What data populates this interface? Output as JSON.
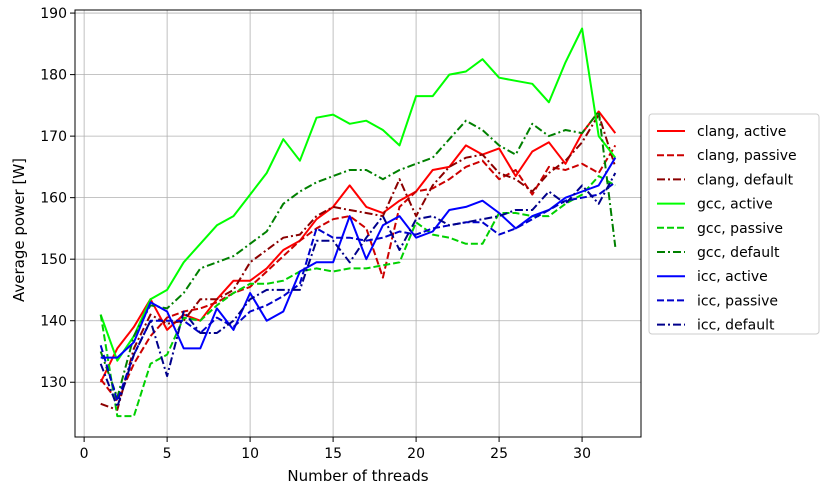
{
  "chart_data": {
    "type": "line",
    "title": "",
    "xlabel": "Number of threads",
    "ylabel": "Average power [W]",
    "xlim": [
      -0.55,
      33.55
    ],
    "ylim": [
      121.1,
      190.5
    ],
    "xticks": [
      0,
      5,
      10,
      15,
      20,
      25,
      30
    ],
    "yticks": [
      130,
      140,
      150,
      160,
      170,
      180,
      190
    ],
    "grid": true,
    "legend_position": "outside-right",
    "x": [
      1,
      2,
      3,
      4,
      5,
      6,
      7,
      8,
      9,
      10,
      11,
      12,
      13,
      14,
      15,
      16,
      17,
      18,
      19,
      20,
      21,
      22,
      23,
      24,
      25,
      26,
      27,
      28,
      29,
      30,
      31,
      32
    ],
    "series": [
      {
        "name": "clang, active",
        "color": "#ff0000",
        "dash": "solid",
        "values": [
          130.0,
          135.5,
          139.0,
          143.5,
          138.5,
          141.0,
          140.0,
          143.5,
          146.5,
          146.5,
          148.5,
          151.5,
          153.0,
          156.5,
          158.5,
          162.0,
          158.5,
          157.5,
          159.5,
          161.0,
          164.5,
          165.0,
          168.5,
          167.0,
          168.0,
          163.5,
          167.5,
          169.0,
          165.5,
          170.5,
          174.0,
          170.5
        ]
      },
      {
        "name": "clang, passive",
        "color": "#cc0000",
        "dash": "dashed",
        "values": [
          130.5,
          127.0,
          133.0,
          137.5,
          140.5,
          141.5,
          142.0,
          143.0,
          144.5,
          145.5,
          148.0,
          150.5,
          153.0,
          155.0,
          156.5,
          157.0,
          155.0,
          147.0,
          158.5,
          161.0,
          161.5,
          163.0,
          165.0,
          166.0,
          163.0,
          164.5,
          160.5,
          165.0,
          164.5,
          165.5,
          164.0,
          168.5
        ]
      },
      {
        "name": "clang, default",
        "color": "#8b0000",
        "dash": "dashdot",
        "values": [
          126.5,
          125.5,
          135.5,
          141.0,
          139.5,
          140.0,
          143.5,
          143.5,
          145.0,
          149.5,
          151.5,
          153.5,
          154.0,
          157.0,
          158.5,
          158.0,
          157.5,
          157.0,
          163.0,
          157.0,
          162.0,
          165.0,
          166.5,
          167.0,
          164.0,
          163.0,
          161.0,
          164.0,
          166.0,
          169.0,
          173.5,
          165.0
        ]
      },
      {
        "name": "gcc, active",
        "color": "#00ff00",
        "dash": "solid",
        "values": [
          141.0,
          133.5,
          137.5,
          143.5,
          145.0,
          149.5,
          152.5,
          155.5,
          157.0,
          160.5,
          164.0,
          169.5,
          166.0,
          173.0,
          173.5,
          172.0,
          172.5,
          171.0,
          168.5,
          176.5,
          176.5,
          180.0,
          180.5,
          182.5,
          179.5,
          179.0,
          178.5,
          175.5,
          182.0,
          187.5,
          170.0,
          166.5
        ]
      },
      {
        "name": "gcc, passive",
        "color": "#00d000",
        "dash": "dashed",
        "values": [
          141.0,
          124.5,
          124.5,
          133.0,
          134.5,
          140.5,
          140.0,
          142.5,
          144.5,
          146.0,
          146.0,
          146.5,
          148.0,
          148.5,
          148.0,
          148.5,
          148.5,
          149.0,
          149.5,
          156.0,
          154.0,
          153.5,
          152.5,
          152.5,
          157.5,
          157.5,
          157.0,
          157.0,
          159.0,
          160.5,
          163.5,
          162.0
        ]
      },
      {
        "name": "gcc, default",
        "color": "#008000",
        "dash": "dashdot",
        "values": [
          135.0,
          127.5,
          137.5,
          142.5,
          142.0,
          144.5,
          148.5,
          149.5,
          150.5,
          152.5,
          154.5,
          159.0,
          161.0,
          162.5,
          163.5,
          164.5,
          164.5,
          163.0,
          164.5,
          165.5,
          166.5,
          169.5,
          172.5,
          171.0,
          168.5,
          167.0,
          172.0,
          170.0,
          171.0,
          170.5,
          174.0,
          152.0
        ]
      },
      {
        "name": "icc, active",
        "color": "#0000ff",
        "dash": "solid",
        "values": [
          134.0,
          134.0,
          136.5,
          143.0,
          141.5,
          135.5,
          135.5,
          142.0,
          138.5,
          144.5,
          140.0,
          141.5,
          148.0,
          149.5,
          149.5,
          157.0,
          150.0,
          155.5,
          157.0,
          153.5,
          154.5,
          158.0,
          158.5,
          159.5,
          157.5,
          155.0,
          157.0,
          158.0,
          160.0,
          161.0,
          162.0,
          166.5
        ]
      },
      {
        "name": "icc, passive",
        "color": "#0000cc",
        "dash": "dashed",
        "values": [
          136.0,
          127.0,
          134.5,
          140.0,
          140.0,
          140.0,
          138.0,
          140.5,
          139.0,
          141.5,
          142.5,
          144.0,
          146.0,
          155.0,
          153.5,
          153.5,
          153.0,
          153.5,
          154.5,
          154.0,
          155.0,
          155.5,
          156.0,
          156.0,
          154.0,
          155.0,
          156.5,
          158.0,
          159.5,
          160.0,
          160.5,
          162.5
        ]
      },
      {
        "name": "icc, default",
        "color": "#00008b",
        "dash": "dashdot",
        "values": [
          133.0,
          126.0,
          134.5,
          140.0,
          131.0,
          141.5,
          138.0,
          138.0,
          140.0,
          143.5,
          145.0,
          145.0,
          145.0,
          153.0,
          153.0,
          149.5,
          153.5,
          157.0,
          151.5,
          156.5,
          157.0,
          155.5,
          156.0,
          156.5,
          157.0,
          158.0,
          158.0,
          161.0,
          159.0,
          162.0,
          159.0,
          164.0
        ]
      }
    ]
  }
}
